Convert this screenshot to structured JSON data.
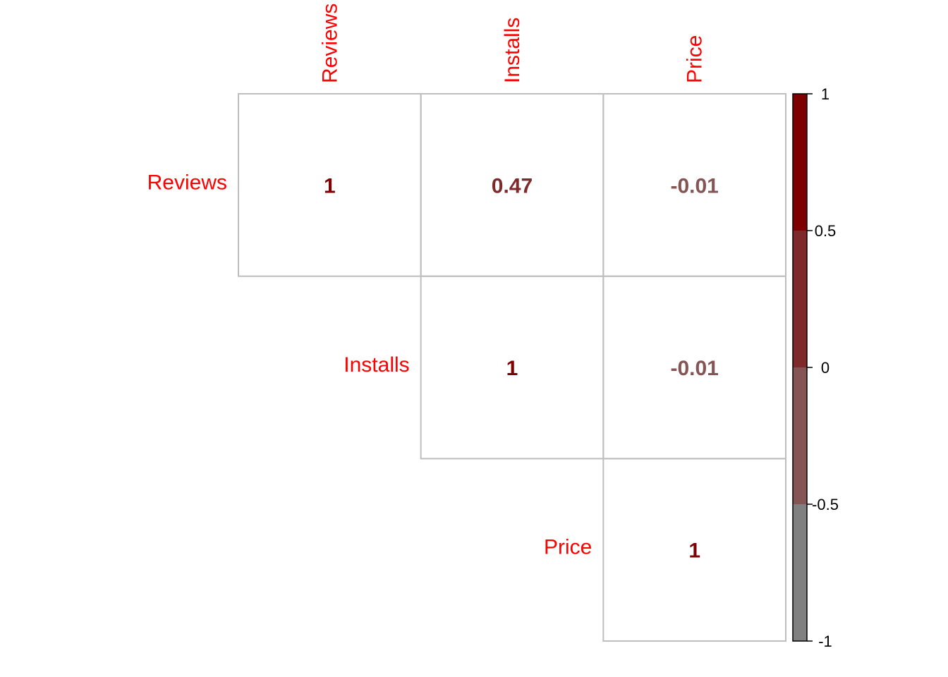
{
  "chart_data": {
    "type": "heatmap",
    "subtype": "correlation-matrix-upper",
    "variables": [
      "Reviews",
      "Installs",
      "Price"
    ],
    "matrix": [
      [
        1,
        0.47,
        -0.01
      ],
      [
        0.47,
        1,
        -0.01
      ],
      [
        -0.01,
        -0.01,
        1
      ]
    ],
    "cells": [
      {
        "row": 0,
        "col": 0,
        "value": 1,
        "label": "1"
      },
      {
        "row": 0,
        "col": 1,
        "value": 0.47,
        "label": "0.47"
      },
      {
        "row": 0,
        "col": 2,
        "value": -0.01,
        "label": "-0.01"
      },
      {
        "row": 1,
        "col": 1,
        "value": 1,
        "label": "1"
      },
      {
        "row": 1,
        "col": 2,
        "value": -0.01,
        "label": "-0.01"
      },
      {
        "row": 2,
        "col": 2,
        "value": 1,
        "label": "1"
      }
    ],
    "colorbar": {
      "range": [
        -1,
        1
      ],
      "ticks": [
        1,
        0.5,
        0,
        -0.5,
        -1
      ],
      "tick_labels": [
        "1",
        "0.5",
        "0",
        "-0.5",
        "-1"
      ],
      "bins": [
        {
          "from": 0.5,
          "to": 1,
          "color": "#7f0000"
        },
        {
          "from": 0,
          "to": 0.5,
          "color": "#7f2a2a"
        },
        {
          "from": -0.5,
          "to": 0,
          "color": "#855555"
        },
        {
          "from": -1,
          "to": -0.5,
          "color": "#808080"
        }
      ]
    },
    "colors": {
      "label": "#ff0000",
      "grid": "#bebebe"
    }
  }
}
